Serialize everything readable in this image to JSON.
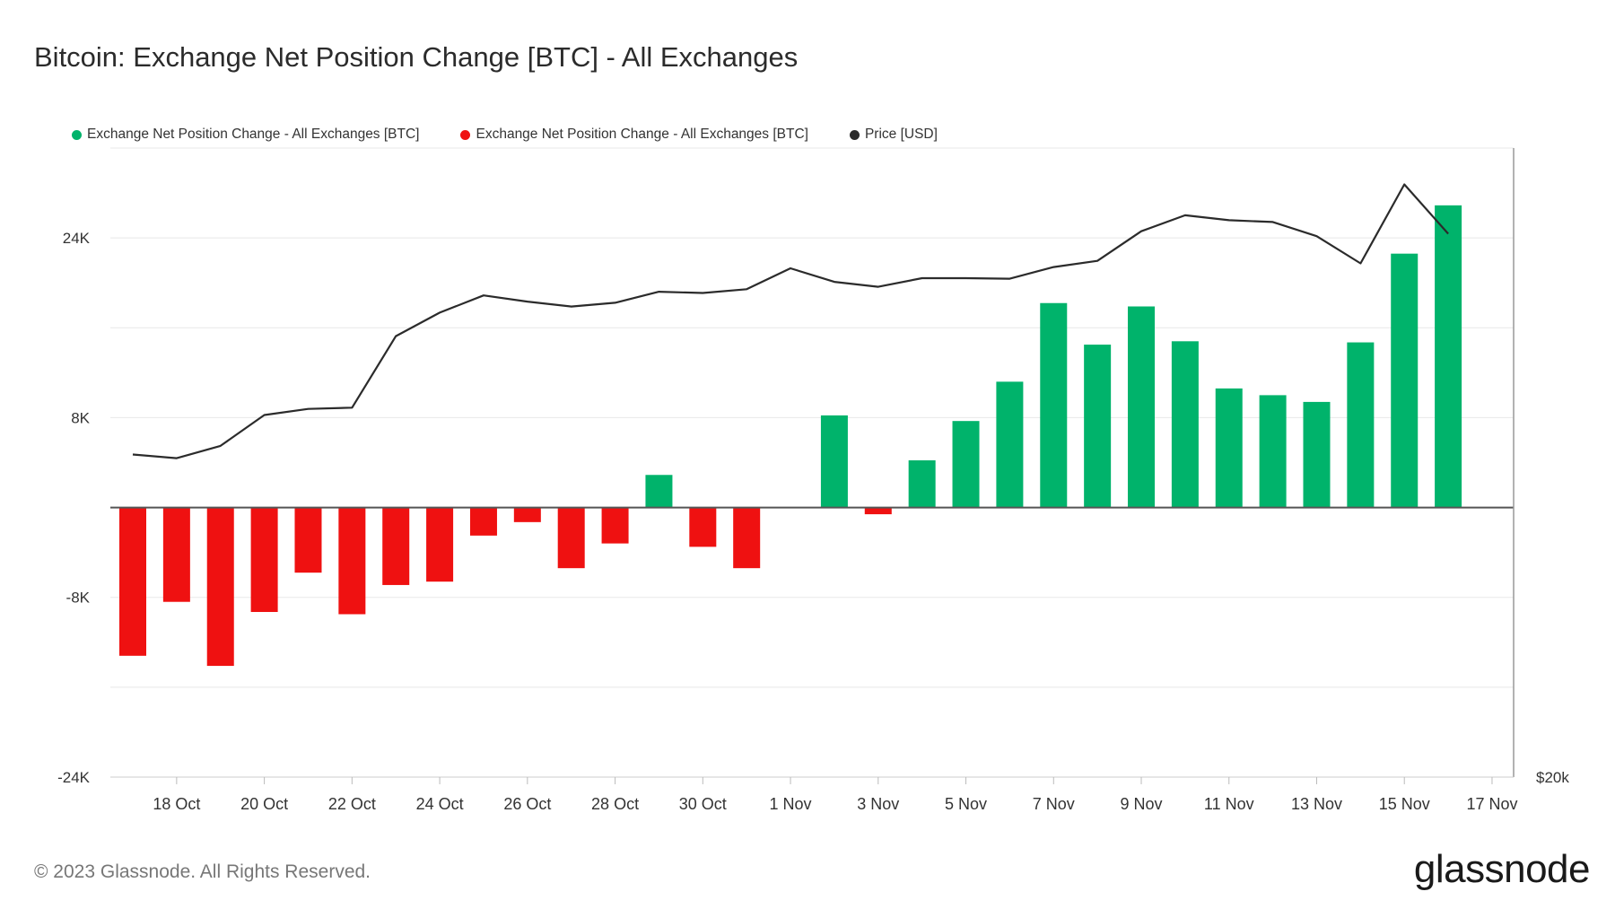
{
  "footer": {
    "copyright": "© 2023 Glassnode. All Rights Reserved.",
    "logo_text": "glassnode"
  },
  "colors": {
    "positive": "#00b36b",
    "negative": "#ef1111",
    "price_line": "#2b2b2b",
    "grid": "#e8e8e8",
    "zero_line": "#555555"
  },
  "chart_data": {
    "type": "bar",
    "title": "Bitcoin: Exchange Net Position Change [BTC] - All Exchanges",
    "series": [
      {
        "name": "Exchange Net Position Change - All Exchanges [BTC]",
        "color": "#00b36b",
        "role": "positive bars"
      },
      {
        "name": "Exchange Net Position Change - All Exchanges [BTC]",
        "color": "#ef1111",
        "role": "negative bars"
      },
      {
        "name": "Price [USD]",
        "color": "#2b2b2b",
        "role": "line"
      }
    ],
    "y_left": {
      "ylim": [
        -24000,
        32000
      ],
      "tick_values": [
        -24000,
        -8000,
        8000,
        24000
      ],
      "tick_labels": [
        "-24K",
        "-8K",
        "8K",
        "24K"
      ],
      "grid_values": [
        -24000,
        -16000,
        -8000,
        0,
        8000,
        16000,
        24000,
        32000
      ]
    },
    "y_right": {
      "visible_tick_label": "$20k"
    },
    "x_tick_labels": [
      "18 Oct",
      "20 Oct",
      "22 Oct",
      "24 Oct",
      "26 Oct",
      "28 Oct",
      "30 Oct",
      "1 Nov",
      "3 Nov",
      "5 Nov",
      "7 Nov",
      "9 Nov",
      "11 Nov",
      "13 Nov",
      "15 Nov",
      "17 Nov"
    ],
    "dates": [
      "17 Oct",
      "18 Oct",
      "19 Oct",
      "20 Oct",
      "21 Oct",
      "22 Oct",
      "23 Oct",
      "24 Oct",
      "25 Oct",
      "26 Oct",
      "27 Oct",
      "28 Oct",
      "29 Oct",
      "30 Oct",
      "31 Oct",
      "1 Nov",
      "2 Nov",
      "3 Nov",
      "4 Nov",
      "5 Nov",
      "6 Nov",
      "7 Nov",
      "8 Nov",
      "9 Nov",
      "10 Nov",
      "11 Nov",
      "12 Nov",
      "13 Nov",
      "14 Nov",
      "15 Nov",
      "16 Nov"
    ],
    "net_position_change": [
      -13200,
      -8400,
      -14100,
      -9300,
      -5800,
      -9500,
      -6900,
      -6600,
      -2500,
      -1300,
      -5400,
      -3200,
      2900,
      -3500,
      -5400,
      null,
      8200,
      -600,
      4200,
      7700,
      11200,
      18200,
      14500,
      17900,
      14800,
      10600,
      10000,
      9400,
      14700,
      22600,
      26900
    ],
    "price_usd": [
      19520,
      19490,
      19590,
      19840,
      19890,
      19900,
      20480,
      20670,
      20810,
      20760,
      20720,
      20750,
      20840,
      20830,
      20860,
      21030,
      20920,
      20880,
      20950,
      20950,
      20945,
      21040,
      21090,
      21330,
      21460,
      21420,
      21405,
      21290,
      21070,
      21710,
      21310
    ]
  }
}
